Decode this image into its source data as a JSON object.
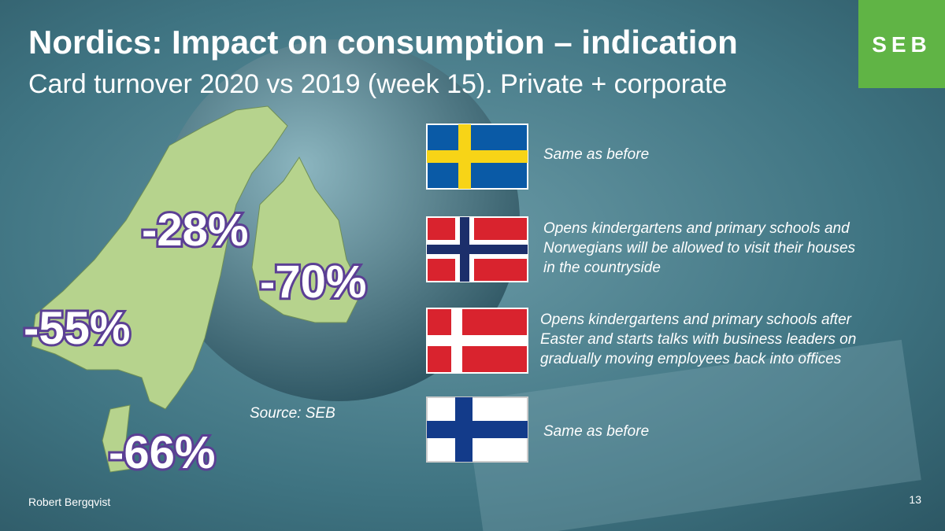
{
  "header": {
    "title": "Nordics: Impact on consumption – indication",
    "subtitle": "Card turnover 2020 vs 2019 (week 15). Private + corporate"
  },
  "logo": "SEB",
  "map_labels": [
    "-28%",
    "-70%",
    "-55%",
    "-66%"
  ],
  "flags": [
    {
      "note": [
        "Same as before"
      ]
    },
    {
      "note": [
        "Opens kindergartens and primary schools and",
        "Norwegians will be allowed to visit their houses",
        "in the countryside"
      ]
    },
    {
      "note": [
        "Opens kindergartens and primary schools after",
        "Easter and starts talks with business leaders on",
        "gradually moving employees back into offices"
      ]
    },
    {
      "note": [
        "Same as before"
      ]
    }
  ],
  "source": "Source: SEB",
  "footer": {
    "author": "Robert Bergqvist",
    "page": "13"
  }
}
